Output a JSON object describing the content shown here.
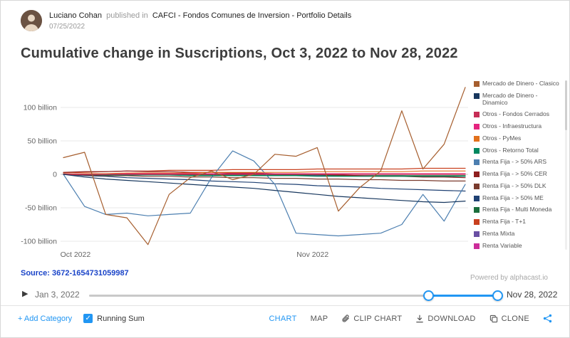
{
  "header": {
    "author": "Luciano Cohan",
    "published_in": "published in",
    "publication": "CAFCI - Fondos Comunes de Inversion - Portfolio Details",
    "date": "07/25/2022"
  },
  "title": "Cumulative change in Suscriptions, Oct 3, 2022 to Nov 28, 2022",
  "source_label": "Source: 3672-1654731059987",
  "powered_by": "Powered by alphacast.io",
  "timeline": {
    "play_icon": "▶",
    "start_label": "Jan 3, 2022",
    "end_label": "Nov 28, 2022"
  },
  "toolbar": {
    "add_category": "+ Add Category",
    "running_sum": "Running Sum",
    "running_sum_checked": true,
    "check_icon": "✓",
    "chart": "CHART",
    "map": "MAP",
    "clip_chart": "CLIP CHART",
    "download": "DOWNLOAD",
    "clone": "CLONE"
  },
  "colors": {
    "accent_blue": "#2196f3",
    "source_blue": "#1a44c8"
  },
  "chart_data": {
    "type": "line",
    "title": "Cumulative change in Suscriptions, Oct 3, 2022 to Nov 28, 2022",
    "unit": "billion",
    "x_range": [
      "Oct 3, 2022",
      "Nov 28, 2022"
    ],
    "x_count": 20,
    "x_ticks": [
      {
        "pos": 0.03,
        "label": "Oct 2022"
      },
      {
        "pos": 0.62,
        "label": "Nov 2022"
      }
    ],
    "y_ticks": [
      {
        "value": 100,
        "label": "100 billion"
      },
      {
        "value": 50,
        "label": "50 billion"
      },
      {
        "value": 0,
        "label": "0"
      },
      {
        "value": -50,
        "label": "-50 billion"
      },
      {
        "value": -100,
        "label": "-100 billion"
      }
    ],
    "ylim": [
      -110,
      140
    ],
    "grid": true,
    "legend_position": "right",
    "series": [
      {
        "name": "Mercado de Dinero - Clasico",
        "color": "#a65e2e",
        "values": [
          25,
          33,
          -60,
          -65,
          -105,
          -30,
          -5,
          5,
          -8,
          0,
          30,
          27,
          40,
          -55,
          -20,
          5,
          95,
          8,
          45,
          130
        ]
      },
      {
        "name": "Mercado de Dinero - Dinamico",
        "color": "#17375e",
        "values": [
          0,
          -4,
          -7,
          -9,
          -11,
          -13,
          -15,
          -17,
          -19,
          -21,
          -24,
          -27,
          -30,
          -33,
          -35,
          -37,
          -39,
          -41,
          -42,
          -40
        ]
      },
      {
        "name": "Otros - Fondos Cerrados",
        "color": "#c62d56",
        "values": [
          0,
          0,
          0,
          0,
          0,
          0,
          0,
          0,
          0,
          0,
          0,
          0,
          0,
          0,
          0,
          0,
          0,
          0,
          0,
          0
        ]
      },
      {
        "name": "Otros - Infraestructura",
        "color": "#e5247f",
        "values": [
          0,
          0,
          0,
          1,
          1,
          1,
          1,
          1,
          1,
          1,
          1,
          1,
          1,
          1,
          1,
          1,
          1,
          1,
          1,
          1
        ]
      },
      {
        "name": "Otros - PyMes",
        "color": "#e2711d",
        "values": [
          0,
          1,
          1,
          2,
          2,
          2,
          2,
          3,
          3,
          3,
          3,
          3,
          4,
          4,
          4,
          4,
          4,
          5,
          5,
          5
        ]
      },
      {
        "name": "Otros - Retorno Total",
        "color": "#00885f",
        "values": [
          0,
          0,
          -1,
          -1,
          -1,
          -1,
          -2,
          -2,
          -2,
          -2,
          -2,
          -2,
          -3,
          -3,
          -3,
          -3,
          -3,
          -3,
          -3,
          -3
        ]
      },
      {
        "name": "Renta Fija - > 50% ARS",
        "color": "#4c7fb0",
        "values": [
          0,
          -48,
          -60,
          -58,
          -62,
          -60,
          -58,
          -5,
          35,
          20,
          -15,
          -88,
          -90,
          -92,
          -90,
          -88,
          -75,
          -30,
          -70,
          -15
        ]
      },
      {
        "name": "Renta Fija - > 50% CER",
        "color": "#8e1f1f",
        "values": [
          3,
          4,
          4,
          5,
          4,
          4,
          3,
          3,
          2,
          2,
          1,
          1,
          0,
          -1,
          -2,
          -3,
          -3,
          -4,
          -4,
          -5
        ]
      },
      {
        "name": "Renta Fija - > 50% DLK",
        "color": "#7a3b2e",
        "values": [
          0,
          -1,
          -2,
          -2,
          -3,
          -3,
          -4,
          -4,
          -5,
          -5,
          -6,
          -6,
          -7,
          -7,
          -8,
          -8,
          -9,
          -9,
          -10,
          -10
        ]
      },
      {
        "name": "Renta Fija - > 50% ME",
        "color": "#1f4173",
        "values": [
          0,
          -2,
          -3,
          -5,
          -6,
          -7,
          -8,
          -10,
          -11,
          -12,
          -14,
          -15,
          -17,
          -18,
          -19,
          -21,
          -22,
          -23,
          -24,
          -25
        ]
      },
      {
        "name": "Renta Fija - Multi Moneda",
        "color": "#1b6e3c",
        "values": [
          0,
          0,
          0,
          0,
          -1,
          -1,
          -1,
          -1,
          -1,
          -1,
          -1,
          -1,
          -1,
          -2,
          -2,
          -2,
          -2,
          -2,
          -2,
          -2
        ]
      },
      {
        "name": "Renta Fija - T+1",
        "color": "#c8401f",
        "values": [
          2,
          3,
          4,
          5,
          5,
          6,
          6,
          6,
          7,
          7,
          7,
          7,
          8,
          8,
          8,
          8,
          8,
          9,
          9,
          9
        ]
      },
      {
        "name": "Renta Mixta",
        "color": "#6a4fa3",
        "values": [
          0,
          0,
          -1,
          -1,
          -1,
          -1,
          -1,
          -1,
          -1,
          -2,
          -2,
          -2,
          -2,
          -2,
          -2,
          -2,
          -2,
          -3,
          -3,
          -3
        ]
      },
      {
        "name": "Renta Variable",
        "color": "#cc2d9a",
        "values": [
          0,
          1,
          1,
          0,
          0,
          0,
          0,
          0,
          0,
          0,
          0,
          0,
          0,
          0,
          1,
          1,
          1,
          1,
          1,
          1
        ]
      }
    ]
  }
}
